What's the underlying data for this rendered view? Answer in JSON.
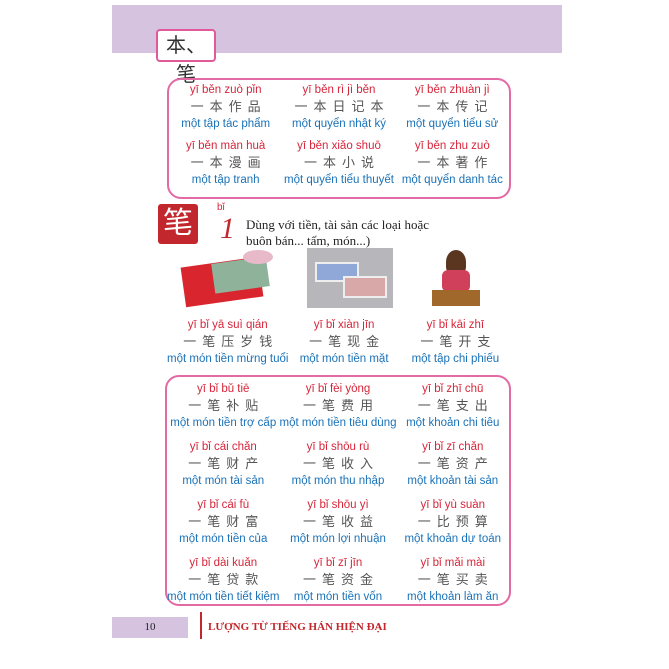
{
  "header": {
    "tag": "本、笔"
  },
  "box1": [
    {
      "py": "yī běn zuò pǐn",
      "hz": "一本作品",
      "vi": "một tập tác phẩm"
    },
    {
      "py": "yī běn rì jì běn",
      "hz": "一本日记本",
      "vi": "một quyển nhật ký"
    },
    {
      "py": "yī běn zhuàn jì",
      "hz": "一本传记",
      "vi": "một quyển tiểu sử"
    },
    {
      "py": "yī běn màn huà",
      "hz": "一本漫画",
      "vi": "một tập tranh"
    },
    {
      "py": "yī běn xiǎo shuō",
      "hz": "一本小说",
      "vi": "một quyển tiểu thuyết"
    },
    {
      "py": "yī běn zhu zuò",
      "hz": "一本著作",
      "vi": "một quyển danh tác"
    }
  ],
  "section": {
    "char": "笔",
    "pinyin": "bǐ",
    "number": "1",
    "desc_line1": "Dùng với tiền, tài sản các loại hoặc",
    "desc_line2": "buôn bán... tấm, món...)"
  },
  "pictures": [
    {
      "py": "yī bǐ yā suì qián",
      "hz": "一笔压岁钱",
      "vi": "một món tiền mừng tuổi"
    },
    {
      "py": "yī bǐ xiàn jīn",
      "hz": "一笔现金",
      "vi": "một món tiền mặt"
    },
    {
      "py": "yī bǐ kāi zhī",
      "hz": "一笔开支",
      "vi": "một tập chi phiếu"
    }
  ],
  "box2": [
    {
      "py": "yī bǐ bǔ tiē",
      "hz": "一笔补贴",
      "vi": "một món tiền trợ cấp"
    },
    {
      "py": "yī bǐ fèi yòng",
      "hz": "一笔费用",
      "vi": "một món tiền tiêu dùng"
    },
    {
      "py": "yī bǐ zhī chū",
      "hz": "一笔支出",
      "vi": "một khoản chi tiêu"
    },
    {
      "py": "yī bǐ cái chǎn",
      "hz": "一笔财产",
      "vi": "một món tài sản"
    },
    {
      "py": "yī bǐ shōu rù",
      "hz": "一笔收入",
      "vi": "một món thu nhập"
    },
    {
      "py": "yī bǐ zī chǎn",
      "hz": "一笔资产",
      "vi": "một khoản tài sản"
    },
    {
      "py": "yī bǐ cái fù",
      "hz": "一笔财富",
      "vi": "một món tiền của"
    },
    {
      "py": "yī bǐ shōu yì",
      "hz": "一笔收益",
      "vi": "một món lợi nhuận"
    },
    {
      "py": "yī bǐ yù suàn",
      "hz": "一比预算",
      "vi": "một khoản dự toán"
    },
    {
      "py": "yī bǐ dài kuǎn",
      "hz": "一笔贷款",
      "vi": "một món tiền tiết kiệm"
    },
    {
      "py": "yī bǐ zī jīn",
      "hz": "一笔资金",
      "vi": "một món tiền vốn"
    },
    {
      "py": "yī bǐ mǎi mài",
      "hz": "一笔买卖",
      "vi": "một khoản làm ăn"
    }
  ],
  "footer": {
    "page": "10",
    "title": "LƯỢNG TỪ TIẾNG HÁN HIỆN ĐẠI"
  }
}
